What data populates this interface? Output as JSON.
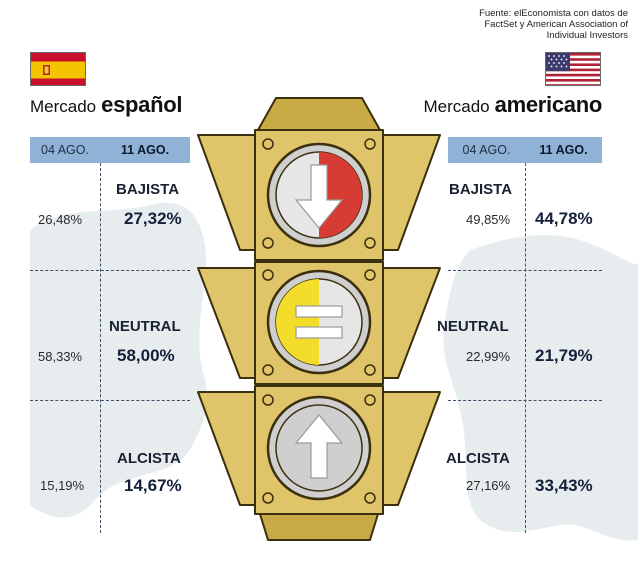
{
  "source": "Fuente: elEconomista con datos de FactSet y American Association of Individual Investors",
  "colors": {
    "header_blue": "#8fb2d6",
    "light_body": "#dfc46a",
    "light_dark": "#5c4a14",
    "bearish_red": "#d63b34",
    "neutral_yellow": "#f3dd2a",
    "bullish_gray": "#cfcfcf",
    "map_gray": "#e7ecef"
  },
  "icons": [
    "flag-spain-icon",
    "flag-usa-icon",
    "down-arrow-icon",
    "equals-icon",
    "up-arrow-icon"
  ],
  "chart_data": {
    "type": "table",
    "dates": [
      "04 AGO.",
      "11 AGO."
    ],
    "categories": [
      "BAJISTA",
      "NEUTRAL",
      "ALCISTA"
    ],
    "markets": [
      {
        "title_light": "Mercado",
        "title_bold": "español",
        "values_prev": [
          "26,48%",
          "58,33%",
          "15,19%"
        ],
        "values_curr": [
          "27,32%",
          "58,00%",
          "14,67%"
        ]
      },
      {
        "title_light": "Mercado",
        "title_bold": "americano",
        "values_prev": [
          "49,85%",
          "22,99%",
          "27,16%"
        ],
        "values_curr": [
          "44,78%",
          "21,79%",
          "33,43%"
        ]
      }
    ]
  }
}
